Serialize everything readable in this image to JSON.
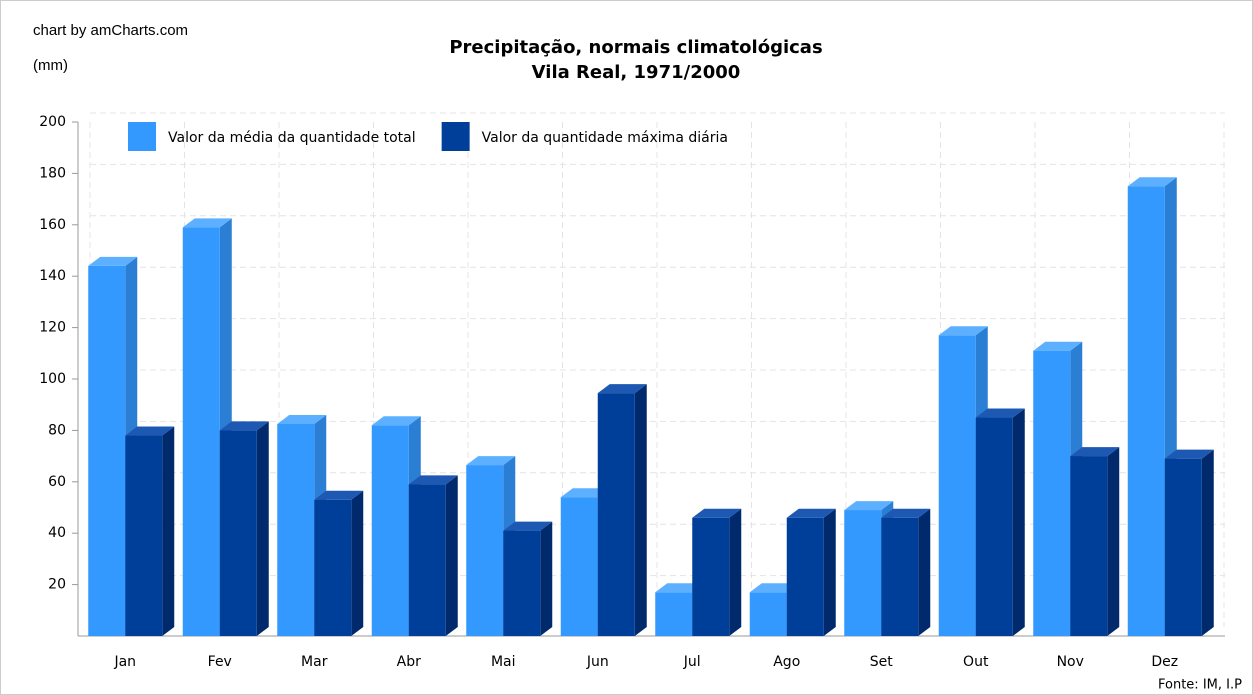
{
  "chart_data": {
    "type": "bar3d",
    "credit": "chart by amCharts.com",
    "title": "Precipitação, normais climatológicas",
    "subtitle": "Vila Real, 1971/2000",
    "y_label": "(mm)",
    "source": "Fonte: IM, I.P",
    "categories": [
      "Jan",
      "Fev",
      "Mar",
      "Abr",
      "Mai",
      "Jun",
      "Jul",
      "Ago",
      "Set",
      "Out",
      "Nov",
      "Dez"
    ],
    "series": [
      {
        "name": "Valor da média da quantidade total",
        "color": "#3399ff",
        "side": "#2a7fd4",
        "top": "#5cb0ff",
        "values": [
          144,
          159,
          82.5,
          82,
          66.5,
          54,
          17,
          17,
          49,
          117,
          111,
          175
        ]
      },
      {
        "name": "Valor da quantidade máxima diária",
        "color": "#003f99",
        "side": "#002a6b",
        "top": "#1d58b3",
        "values": [
          78,
          80,
          53,
          59,
          41,
          94.5,
          46,
          46,
          46,
          85,
          70,
          69
        ]
      }
    ],
    "ylim": [
      0,
      200
    ],
    "yticks": [
      20,
      40,
      60,
      80,
      100,
      120,
      140,
      160,
      180,
      200
    ],
    "grid": true
  }
}
